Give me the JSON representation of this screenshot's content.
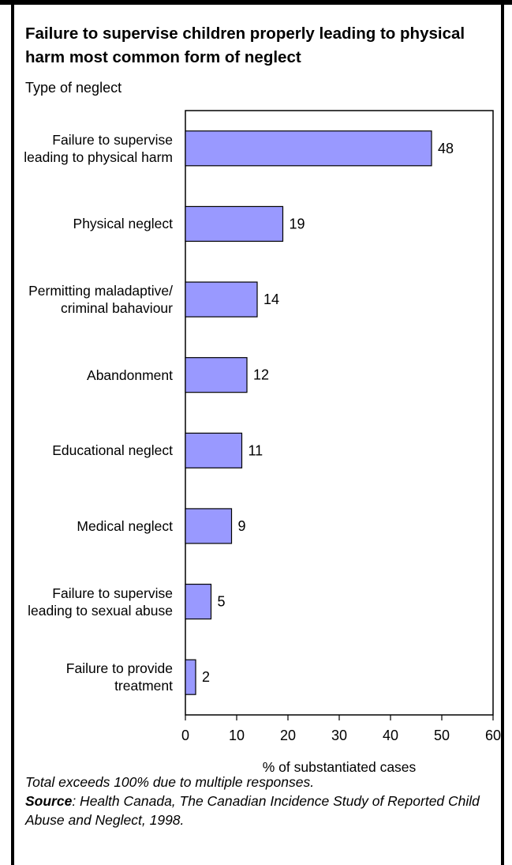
{
  "chart_data": {
    "type": "bar",
    "orientation": "horizontal",
    "title": "Failure to supervise children properly leading to physical harm most common form of neglect",
    "ylabel": "Type of neglect",
    "xlabel": "% of substantiated cases",
    "categories": [
      "Failure to supervise leading to physical harm",
      "Physical neglect",
      "Permitting maladaptive/ criminal bahaviour",
      "Abandonment",
      "Educational neglect",
      "Medical neglect",
      "Failure to supervise leading to sexual abuse",
      "Failure to provide treatment"
    ],
    "values": [
      48,
      19,
      14,
      12,
      11,
      9,
      5,
      2
    ],
    "xlim": [
      0,
      60
    ],
    "xticks": [
      "0",
      "10",
      "20",
      "30",
      "40",
      "50",
      "60"
    ],
    "grid": false,
    "bar_color": "#9999ff"
  },
  "footer": {
    "note": "Total exceeds 100% due to multiple responses.",
    "source_label": "Source",
    "source_text": ": Health Canada, The Canadian Incidence Study of Reported Child Abuse and Neglect, 1998."
  }
}
